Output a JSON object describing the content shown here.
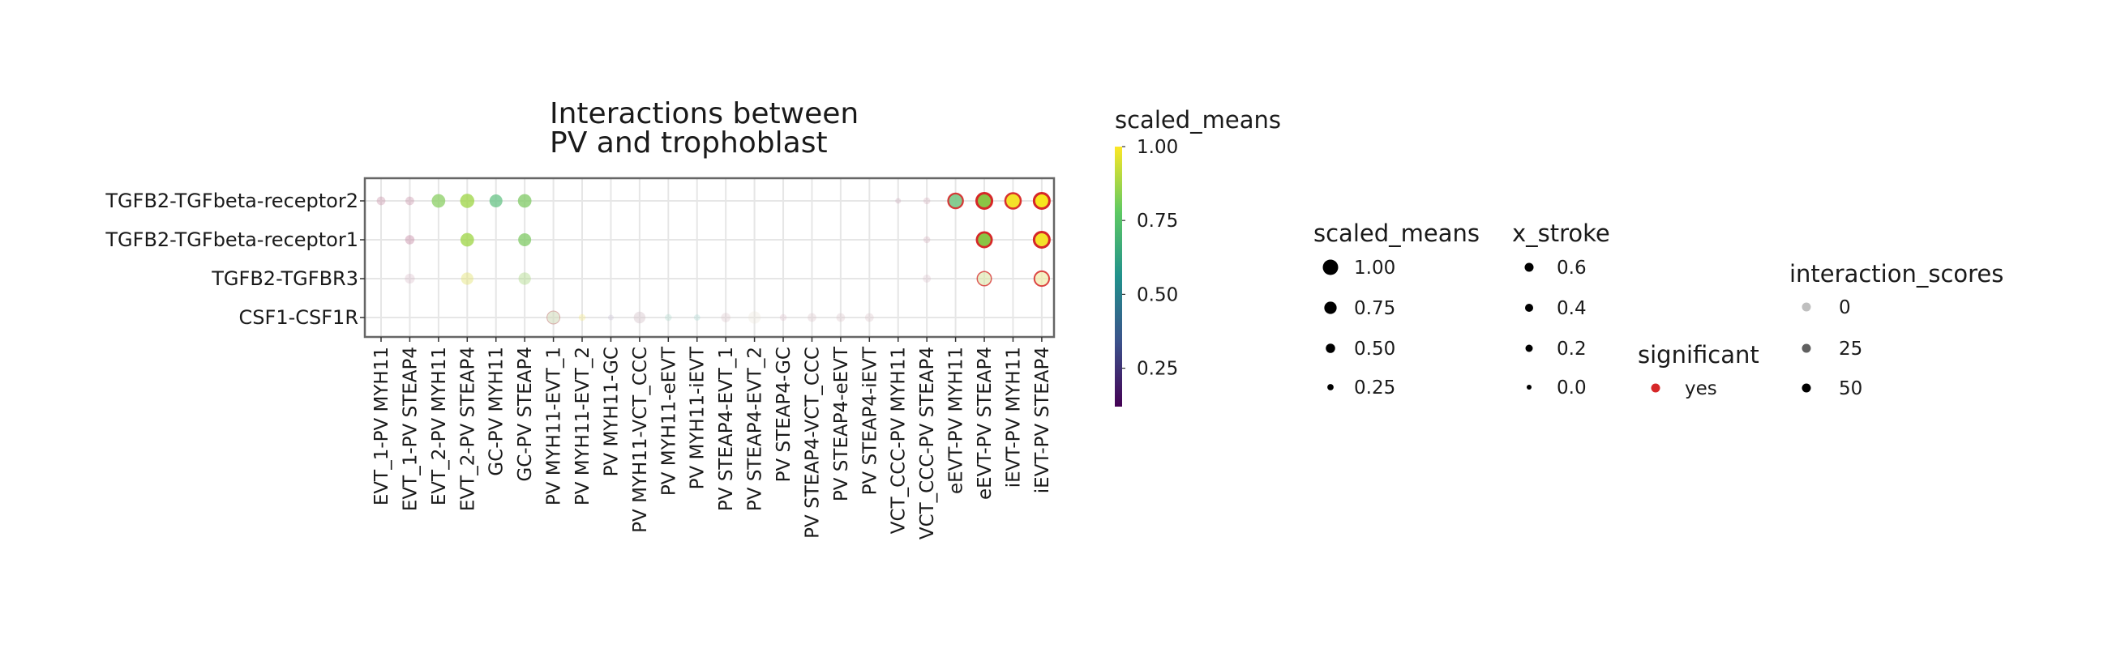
{
  "chart_data": {
    "type": "scatter",
    "subtype": "dotplot",
    "title_lines": [
      "Interactions between",
      "PV and trophoblast"
    ],
    "y_categories": [
      "TGFB2-TGFbeta-receptor2",
      "TGFB2-TGFbeta-receptor1",
      "TGFB2-TGFBR3",
      "CSF1-CSF1R"
    ],
    "x_categories": [
      "EVT_1-PV MYH11",
      "EVT_1-PV STEAP4",
      "EVT_2-PV MYH11",
      "EVT_2-PV STEAP4",
      "GC-PV MYH11",
      "GC-PV STEAP4",
      "PV MYH11-EVT_1",
      "PV MYH11-EVT_2",
      "PV MYH11-GC",
      "PV MYH11-VCT_CCC",
      "PV MYH11-eEVT",
      "PV MYH11-iEVT",
      "PV STEAP4-EVT_1",
      "PV STEAP4-EVT_2",
      "PV STEAP4-GC",
      "PV STEAP4-VCT_CCC",
      "PV STEAP4-eEVT",
      "PV STEAP4-iEVT",
      "VCT_CCC-PV MYH11",
      "VCT_CCC-PV STEAP4",
      "eEVT-PV MYH11",
      "eEVT-PV STEAP4",
      "iEVT-PV MYH11",
      "iEVT-PV STEAP4"
    ],
    "grid": true,
    "points": [
      {
        "x": "EVT_1-PV MYH11",
        "y": "TGFB2-TGFbeta-receptor2",
        "scaled_means": 0.45,
        "interaction_score": 10,
        "significant": false,
        "x_stroke": 0.0,
        "fill": "#c890a8"
      },
      {
        "x": "EVT_1-PV STEAP4",
        "y": "TGFB2-TGFbeta-receptor2",
        "scaled_means": 0.45,
        "interaction_score": 10,
        "significant": false,
        "x_stroke": 0.0,
        "fill": "#c890a8"
      },
      {
        "x": "EVT_2-PV MYH11",
        "y": "TGFB2-TGFbeta-receptor2",
        "scaled_means": 0.85,
        "interaction_score": 35,
        "significant": false,
        "x_stroke": 0.0,
        "fill": "#8fd06a"
      },
      {
        "x": "EVT_2-PV STEAP4",
        "y": "TGFB2-TGFbeta-receptor2",
        "scaled_means": 0.9,
        "interaction_score": 35,
        "significant": false,
        "x_stroke": 0.0,
        "fill": "#a0d64a"
      },
      {
        "x": "GC-PV MYH11",
        "y": "TGFB2-TGFbeta-receptor2",
        "scaled_means": 0.8,
        "interaction_score": 35,
        "significant": false,
        "x_stroke": 0.0,
        "fill": "#6cc58a"
      },
      {
        "x": "GC-PV STEAP4",
        "y": "TGFB2-TGFbeta-receptor2",
        "scaled_means": 0.85,
        "interaction_score": 35,
        "significant": false,
        "x_stroke": 0.0,
        "fill": "#84cc6a"
      },
      {
        "x": "VCT_CCC-PV MYH11",
        "y": "TGFB2-TGFbeta-receptor2",
        "scaled_means": 0.2,
        "interaction_score": 5,
        "significant": false,
        "x_stroke": 0.0,
        "fill": "#c7a2b6"
      },
      {
        "x": "VCT_CCC-PV STEAP4",
        "y": "TGFB2-TGFbeta-receptor2",
        "scaled_means": 0.3,
        "interaction_score": 5,
        "significant": false,
        "x_stroke": 0.0,
        "fill": "#d2a9b8"
      },
      {
        "x": "eEVT-PV MYH11",
        "y": "TGFB2-TGFbeta-receptor2",
        "scaled_means": 0.95,
        "interaction_score": 45,
        "significant": true,
        "x_stroke": 0.45,
        "fill": "#7cc889"
      },
      {
        "x": "eEVT-PV STEAP4",
        "y": "TGFB2-TGFbeta-receptor2",
        "scaled_means": 1.0,
        "interaction_score": 50,
        "significant": true,
        "x_stroke": 0.6,
        "fill": "#8ac445"
      },
      {
        "x": "iEVT-PV MYH11",
        "y": "TGFB2-TGFbeta-receptor2",
        "scaled_means": 1.0,
        "interaction_score": 50,
        "significant": true,
        "x_stroke": 0.5,
        "fill": "#f4e22a"
      },
      {
        "x": "iEVT-PV STEAP4",
        "y": "TGFB2-TGFbeta-receptor2",
        "scaled_means": 1.0,
        "interaction_score": 50,
        "significant": true,
        "x_stroke": 0.6,
        "fill": "#f7e51d"
      },
      {
        "x": "EVT_1-PV STEAP4",
        "y": "TGFB2-TGFbeta-receptor1",
        "scaled_means": 0.5,
        "interaction_score": 15,
        "significant": false,
        "x_stroke": 0.0,
        "fill": "#c890a8"
      },
      {
        "x": "EVT_2-PV STEAP4",
        "y": "TGFB2-TGFbeta-receptor1",
        "scaled_means": 0.85,
        "interaction_score": 35,
        "significant": false,
        "x_stroke": 0.0,
        "fill": "#a0d64a"
      },
      {
        "x": "GC-PV STEAP4",
        "y": "TGFB2-TGFbeta-receptor1",
        "scaled_means": 0.8,
        "interaction_score": 35,
        "significant": false,
        "x_stroke": 0.0,
        "fill": "#84cc6a"
      },
      {
        "x": "VCT_CCC-PV STEAP4",
        "y": "TGFB2-TGFbeta-receptor1",
        "scaled_means": 0.3,
        "interaction_score": 5,
        "significant": false,
        "x_stroke": 0.0,
        "fill": "#d2a9b8"
      },
      {
        "x": "eEVT-PV STEAP4",
        "y": "TGFB2-TGFbeta-receptor1",
        "scaled_means": 0.95,
        "interaction_score": 50,
        "significant": true,
        "x_stroke": 0.55,
        "fill": "#8ac445"
      },
      {
        "x": "iEVT-PV STEAP4",
        "y": "TGFB2-TGFbeta-receptor1",
        "scaled_means": 1.0,
        "interaction_score": 50,
        "significant": true,
        "x_stroke": 0.6,
        "fill": "#f4e22a"
      },
      {
        "x": "EVT_1-PV STEAP4",
        "y": "TGFB2-TGFBR3",
        "scaled_means": 0.55,
        "interaction_score": 5,
        "significant": false,
        "x_stroke": 0.0,
        "fill": "#d3b2c3"
      },
      {
        "x": "EVT_2-PV STEAP4",
        "y": "TGFB2-TGFBR3",
        "scaled_means": 0.75,
        "interaction_score": 15,
        "significant": false,
        "x_stroke": 0.0,
        "fill": "#e4e478"
      },
      {
        "x": "GC-PV STEAP4",
        "y": "TGFB2-TGFBR3",
        "scaled_means": 0.75,
        "interaction_score": 15,
        "significant": false,
        "x_stroke": 0.0,
        "fill": "#b2dc8e"
      },
      {
        "x": "VCT_CCC-PV STEAP4",
        "y": "TGFB2-TGFBR3",
        "scaled_means": 0.4,
        "interaction_score": 3,
        "significant": false,
        "x_stroke": 0.0,
        "fill": "#d7b6c6"
      },
      {
        "x": "eEVT-PV STEAP4",
        "y": "TGFB2-TGFBR3",
        "scaled_means": 0.9,
        "interaction_score": 20,
        "significant": true,
        "x_stroke": 0.3,
        "fill": "#d8e4a0"
      },
      {
        "x": "iEVT-PV STEAP4",
        "y": "TGFB2-TGFBR3",
        "scaled_means": 0.95,
        "interaction_score": 25,
        "significant": true,
        "x_stroke": 0.4,
        "fill": "#f1e9a0"
      },
      {
        "x": "PV MYH11-EVT_1",
        "y": "CSF1-CSF1R",
        "scaled_means": 0.8,
        "interaction_score": 20,
        "significant": false,
        "x_stroke": 0.2,
        "fill": "#cfd9b8"
      },
      {
        "x": "PV MYH11-EVT_2",
        "y": "CSF1-CSF1R",
        "scaled_means": 0.3,
        "interaction_score": 5,
        "significant": false,
        "x_stroke": 0.0,
        "fill": "#f5e87a"
      },
      {
        "x": "PV MYH11-GC",
        "y": "CSF1-CSF1R",
        "scaled_means": 0.2,
        "interaction_score": 5,
        "significant": false,
        "x_stroke": 0.0,
        "fill": "#c7bfd4"
      },
      {
        "x": "PV MYH11-VCT_CCC",
        "y": "CSF1-CSF1R",
        "scaled_means": 0.7,
        "interaction_score": 15,
        "significant": false,
        "x_stroke": 0.0,
        "fill": "#d8c6cc"
      },
      {
        "x": "PV MYH11-eEVT",
        "y": "CSF1-CSF1R",
        "scaled_means": 0.3,
        "interaction_score": 5,
        "significant": false,
        "x_stroke": 0.0,
        "fill": "#a9d8cc"
      },
      {
        "x": "PV MYH11-iEVT",
        "y": "CSF1-CSF1R",
        "scaled_means": 0.25,
        "interaction_score": 5,
        "significant": false,
        "x_stroke": 0.0,
        "fill": "#a6d6d2"
      },
      {
        "x": "PV STEAP4-EVT_1",
        "y": "CSF1-CSF1R",
        "scaled_means": 0.5,
        "interaction_score": 8,
        "significant": false,
        "x_stroke": 0.0,
        "fill": "#dcc6cc"
      },
      {
        "x": "PV STEAP4-EVT_2",
        "y": "CSF1-CSF1R",
        "scaled_means": 0.75,
        "interaction_score": 5,
        "significant": false,
        "x_stroke": 0.0,
        "fill": "#ebe4d6"
      },
      {
        "x": "PV STEAP4-GC",
        "y": "CSF1-CSF1R",
        "scaled_means": 0.3,
        "interaction_score": 5,
        "significant": false,
        "x_stroke": 0.0,
        "fill": "#dcc0cc"
      },
      {
        "x": "PV STEAP4-VCT_CCC",
        "y": "CSF1-CSF1R",
        "scaled_means": 0.45,
        "interaction_score": 8,
        "significant": false,
        "x_stroke": 0.0,
        "fill": "#dcc6cc"
      },
      {
        "x": "PV STEAP4-eEVT",
        "y": "CSF1-CSF1R",
        "scaled_means": 0.45,
        "interaction_score": 8,
        "significant": false,
        "x_stroke": 0.0,
        "fill": "#dcc6cc"
      },
      {
        "x": "PV STEAP4-iEVT",
        "y": "CSF1-CSF1R",
        "scaled_means": 0.45,
        "interaction_score": 8,
        "significant": false,
        "x_stroke": 0.0,
        "fill": "#dcc6cc"
      }
    ],
    "colorbar": {
      "title": "scaled_means",
      "ticks": [
        1.0,
        0.75,
        0.5,
        0.25
      ],
      "tick_labels": [
        "1.00",
        "0.75",
        "0.50",
        "0.25"
      ],
      "range": [
        0.12,
        1.0
      ],
      "colormap": [
        "#440154",
        "#3b528b",
        "#21918c",
        "#5ec962",
        "#fde725"
      ]
    },
    "legends": {
      "size": {
        "title": "scaled_means",
        "labels": [
          "1.00",
          "0.75",
          "0.50",
          "0.25"
        ],
        "values": [
          1.0,
          0.75,
          0.5,
          0.25
        ]
      },
      "stroke": {
        "title": "x_stroke",
        "labels": [
          "0.6",
          "0.4",
          "0.2",
          "0.0"
        ],
        "values": [
          0.6,
          0.4,
          0.2,
          0.0
        ]
      },
      "significant": {
        "title": "significant",
        "labels": [
          "yes"
        ],
        "color": "#d62728"
      },
      "interaction": {
        "title": "interaction_scores",
        "labels": [
          "0",
          "25",
          "50"
        ],
        "values": [
          0,
          25,
          50
        ]
      }
    }
  }
}
